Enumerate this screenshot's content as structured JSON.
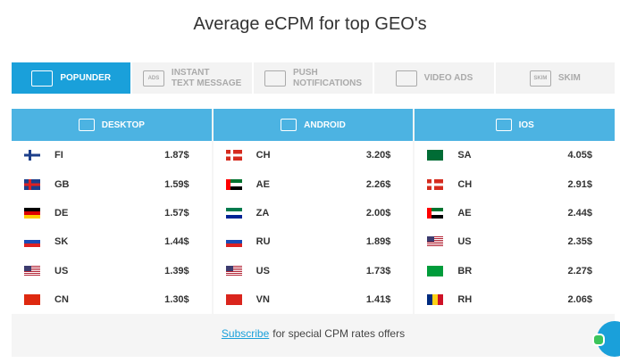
{
  "title": "Average eCPM for top GEO's",
  "tabs": [
    {
      "lines": [
        "POPUNDER"
      ],
      "active": true
    },
    {
      "lines": [
        "INSTANT",
        "TEXT MESSAGE"
      ],
      "icon_text": "ADS"
    },
    {
      "lines": [
        "PUSH",
        "NOTIFICATIONS"
      ]
    },
    {
      "lines": [
        "VIDEO ADS"
      ]
    },
    {
      "lines": [
        "SKIM"
      ],
      "icon_text": "SKIM"
    }
  ],
  "columns": [
    {
      "header": "DESKTOP",
      "rows": [
        {
          "country": "FI",
          "ecpm": "1.87$"
        },
        {
          "country": "GB",
          "ecpm": "1.59$"
        },
        {
          "country": "DE",
          "ecpm": "1.57$"
        },
        {
          "country": "SK",
          "ecpm": "1.44$"
        },
        {
          "country": "US",
          "ecpm": "1.39$"
        },
        {
          "country": "CN",
          "ecpm": "1.30$"
        }
      ]
    },
    {
      "header": "ANDROID",
      "rows": [
        {
          "country": "CH",
          "ecpm": "3.20$"
        },
        {
          "country": "AE",
          "ecpm": "2.26$"
        },
        {
          "country": "ZA",
          "ecpm": "2.00$"
        },
        {
          "country": "RU",
          "ecpm": "1.89$"
        },
        {
          "country": "US",
          "ecpm": "1.73$"
        },
        {
          "country": "VN",
          "ecpm": "1.41$"
        }
      ]
    },
    {
      "header": "IOS",
      "rows": [
        {
          "country": "SA",
          "ecpm": "4.05$"
        },
        {
          "country": "CH",
          "ecpm": "2.91$"
        },
        {
          "country": "AE",
          "ecpm": "2.44$"
        },
        {
          "country": "US",
          "ecpm": "2.35$"
        },
        {
          "country": "BR",
          "ecpm": "2.27$"
        },
        {
          "country": "RH",
          "ecpm": "2.06$"
        }
      ]
    }
  ],
  "footer": {
    "link": "Subscribe",
    "text": "for special CPM rates offers"
  }
}
